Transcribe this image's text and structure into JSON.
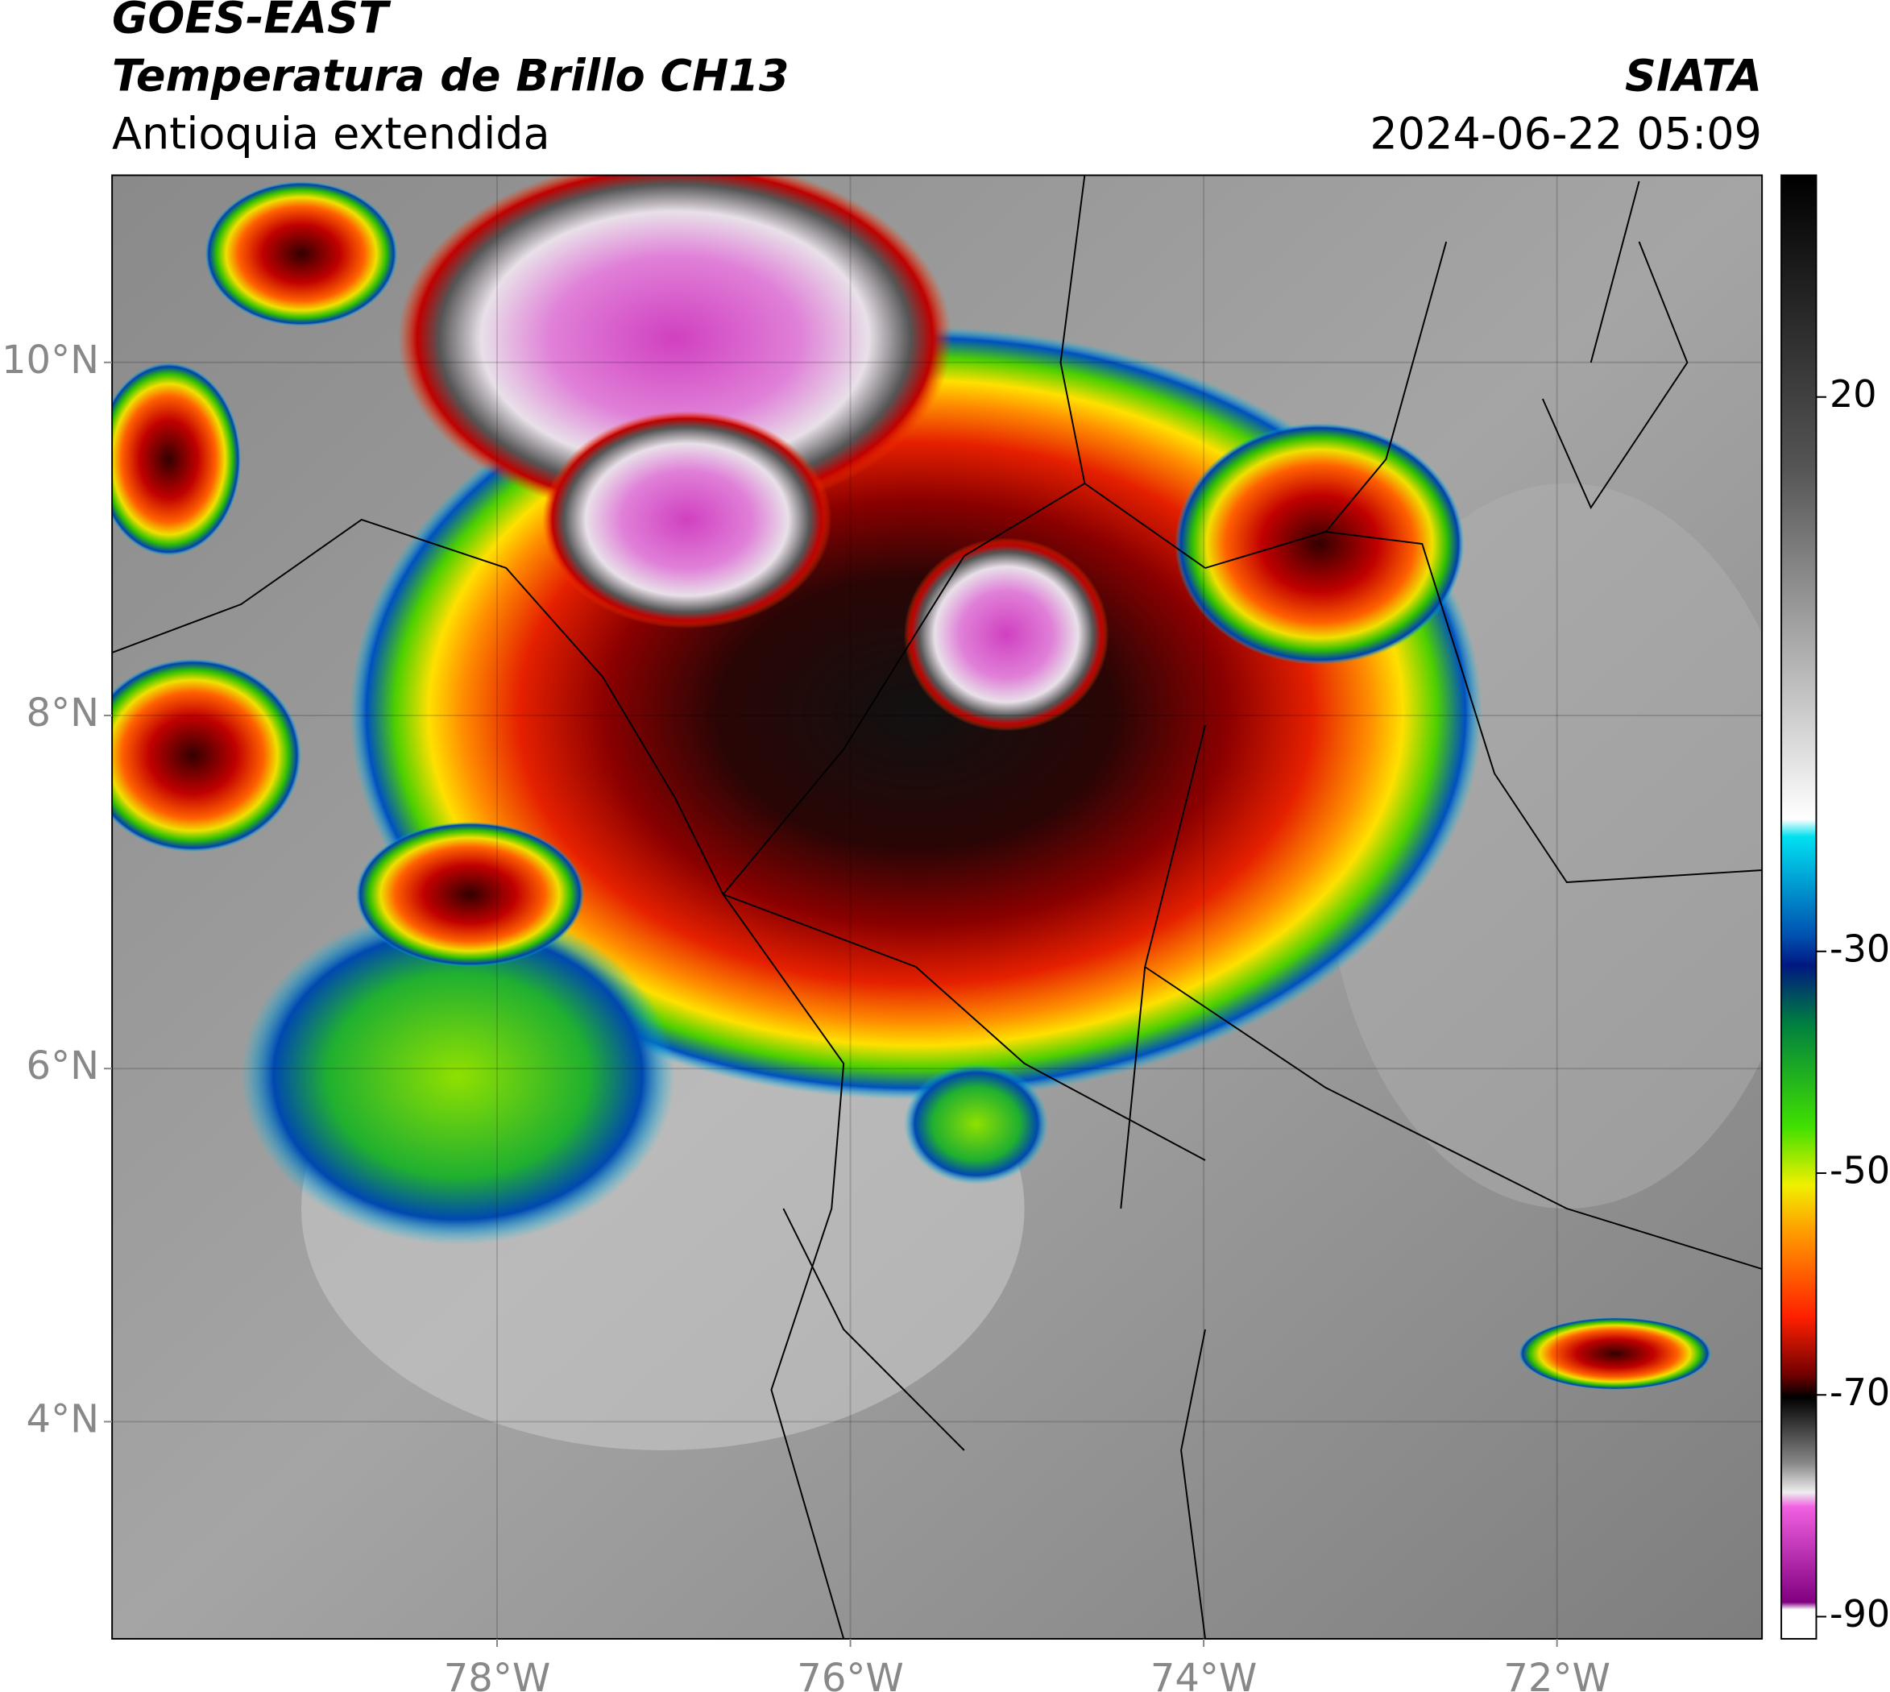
{
  "header": {
    "title": "GOES-EAST",
    "subtitle": "Temperatura de Brillo CH13",
    "region": "Antioquia extendida",
    "agency": "SIATA",
    "datetime": "2024-06-22 05:09"
  },
  "map": {
    "xlim": [
      -80.18,
      -70.84
    ],
    "ylim": [
      2.77,
      11.06
    ],
    "xticks": [
      {
        "value": -78,
        "label": "78°W"
      },
      {
        "value": -76,
        "label": "76°W"
      },
      {
        "value": -74,
        "label": "74°W"
      },
      {
        "value": -72,
        "label": "72°W"
      }
    ],
    "yticks": [
      {
        "value": 10,
        "label": "10°N"
      },
      {
        "value": 8,
        "label": "8°N"
      },
      {
        "value": 6,
        "label": "6°N"
      },
      {
        "value": 4,
        "label": "4°N"
      }
    ],
    "grid": true
  },
  "colorbar": {
    "lim": [
      -92,
      40
    ],
    "ticks": [
      20,
      -30,
      -50,
      -70,
      -90
    ]
  }
}
